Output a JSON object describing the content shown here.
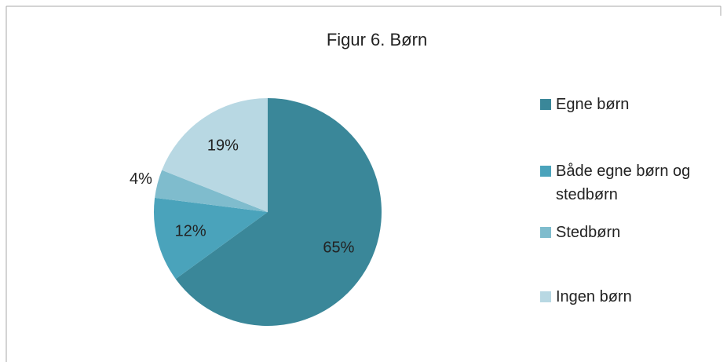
{
  "chart_data": {
    "type": "pie",
    "title": "Figur 6. Børn",
    "categories": [
      "Egne børn",
      "Både egne børn og stedbørn",
      "Stedbørn",
      "Ingen børn"
    ],
    "values": [
      65,
      12,
      4,
      19
    ],
    "value_labels": [
      "65%",
      "12%",
      "4%",
      "19%"
    ],
    "colors": [
      "#3a8799",
      "#4aa3bb",
      "#7fbccd",
      "#b8d8e3"
    ],
    "legend": "right"
  }
}
